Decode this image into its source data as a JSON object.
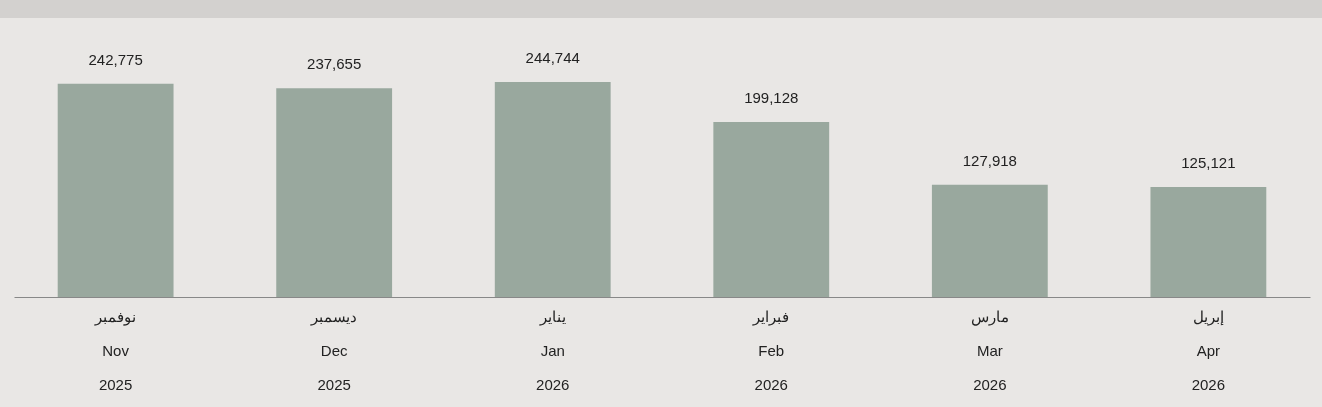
{
  "chart_data": {
    "type": "bar",
    "categories": [
      "نوفمبر\nNov\n2025",
      "ديسمبر\nDec\n2025",
      "يناير\nJan\n2026",
      "فبراير\nFeb\n2026",
      "مارس\nMar\n2026",
      "إبريل\nApr\n2026"
    ],
    "values": [
      242775,
      237655,
      244744,
      199128,
      127918,
      125121
    ],
    "value_labels": [
      "242,775",
      "237,655",
      "244,744",
      "199,128",
      "127,918",
      "125,121"
    ],
    "color": "#99a89e"
  }
}
